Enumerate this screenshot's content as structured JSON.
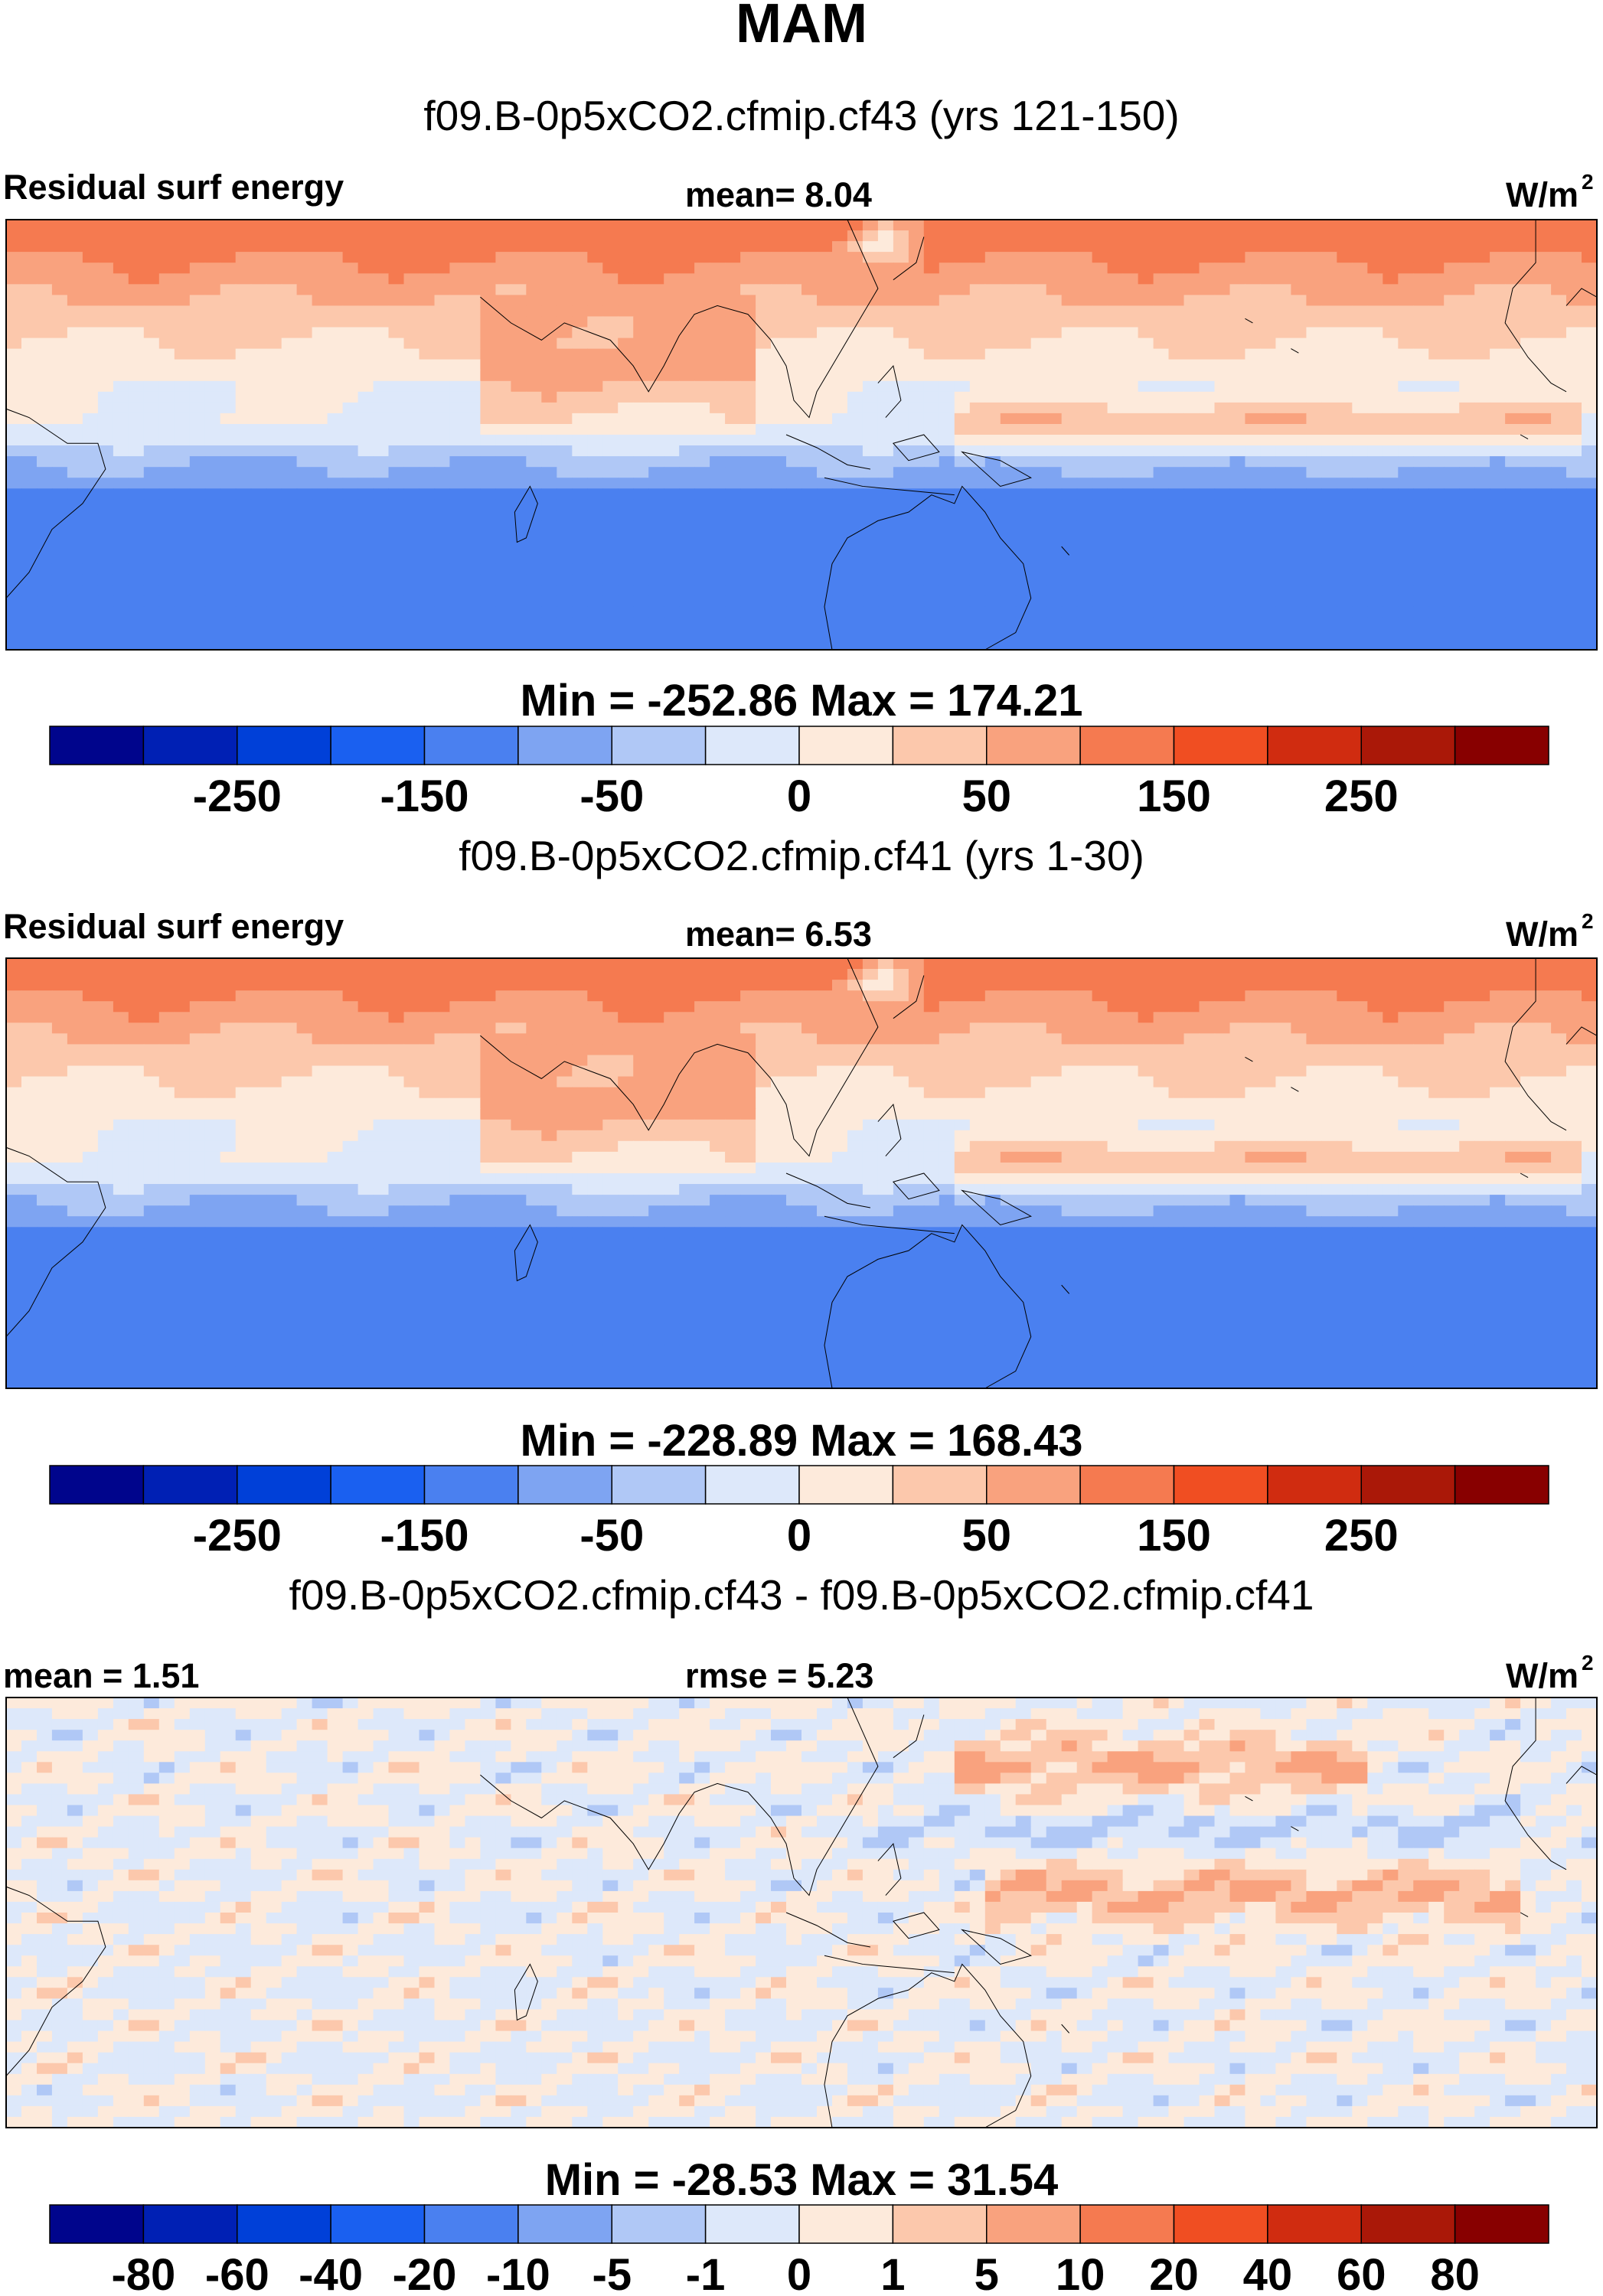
{
  "figure": {
    "season_title": "MAM"
  },
  "colors": {
    "map_outline": "#000000",
    "background": "#ffffff"
  },
  "chart_data": [
    {
      "type": "heatmap",
      "title": "f09.B-0p5xCO2.cfmip.cf43 (yrs 121-150)",
      "left_label": "Residual surf energy",
      "center_label": "mean=   8.04",
      "units_base": "W/m",
      "units_exp": "2",
      "stats_label": "Min = -252.86 Max = 174.21",
      "min": -252.86,
      "max": 174.21,
      "mean": 8.04,
      "colorbar": {
        "colors": [
          "#00058c",
          "#0020b4",
          "#0040d8",
          "#1a60f0",
          "#4a80f0",
          "#7ea4f2",
          "#b0c8f6",
          "#dde8fa",
          "#fdeadb",
          "#fcc8ac",
          "#f9a27e",
          "#f57a50",
          "#f04e22",
          "#d02c10",
          "#aa1808",
          "#880000"
        ],
        "tick_labels": [
          "-250",
          "-150",
          "-50",
          "0",
          "50",
          "150",
          "250"
        ],
        "tick_boundary_index": [
          2,
          4,
          6,
          8,
          10,
          12,
          14
        ]
      },
      "field": "total",
      "seed": 1
    },
    {
      "type": "heatmap",
      "title": "f09.B-0p5xCO2.cfmip.cf41 (yrs 1-30)",
      "left_label": "Residual surf energy",
      "center_label": "mean=   6.53",
      "units_base": "W/m",
      "units_exp": "2",
      "stats_label": "Min = -228.89 Max = 168.43",
      "min": -228.89,
      "max": 168.43,
      "mean": 6.53,
      "colorbar": {
        "colors": [
          "#00058c",
          "#0020b4",
          "#0040d8",
          "#1a60f0",
          "#4a80f0",
          "#7ea4f2",
          "#b0c8f6",
          "#dde8fa",
          "#fdeadb",
          "#fcc8ac",
          "#f9a27e",
          "#f57a50",
          "#f04e22",
          "#d02c10",
          "#aa1808",
          "#880000"
        ],
        "tick_labels": [
          "-250",
          "-150",
          "-50",
          "0",
          "50",
          "150",
          "250"
        ],
        "tick_boundary_index": [
          2,
          4,
          6,
          8,
          10,
          12,
          14
        ]
      },
      "field": "total",
      "seed": 2
    },
    {
      "type": "heatmap",
      "title": "f09.B-0p5xCO2.cfmip.cf43 - f09.B-0p5xCO2.cfmip.cf41",
      "left_label": "mean =    1.51",
      "center_label": "rmse =    5.23",
      "units_base": "W/m",
      "units_exp": "2",
      "stats_label": "Min = -28.53 Max =  31.54",
      "min": -28.53,
      "max": 31.54,
      "mean": 1.51,
      "rmse": 5.23,
      "colorbar": {
        "colors": [
          "#00058c",
          "#0020b4",
          "#0040d8",
          "#1a60f0",
          "#4a80f0",
          "#7ea4f2",
          "#b0c8f6",
          "#dde8fa",
          "#fdeadb",
          "#fcc8ac",
          "#f9a27e",
          "#f57a50",
          "#f04e22",
          "#d02c10",
          "#aa1808",
          "#880000"
        ],
        "tick_labels": [
          "-80",
          "-60",
          "-40",
          "-20",
          "-10",
          "-5",
          "-1",
          "0",
          "1",
          "5",
          "10",
          "20",
          "40",
          "60",
          "80"
        ],
        "tick_boundary_index": [
          1,
          2,
          3,
          4,
          5,
          6,
          7,
          8,
          9,
          10,
          11,
          12,
          13,
          14,
          15
        ]
      },
      "field": "diff",
      "seed": 3
    }
  ]
}
